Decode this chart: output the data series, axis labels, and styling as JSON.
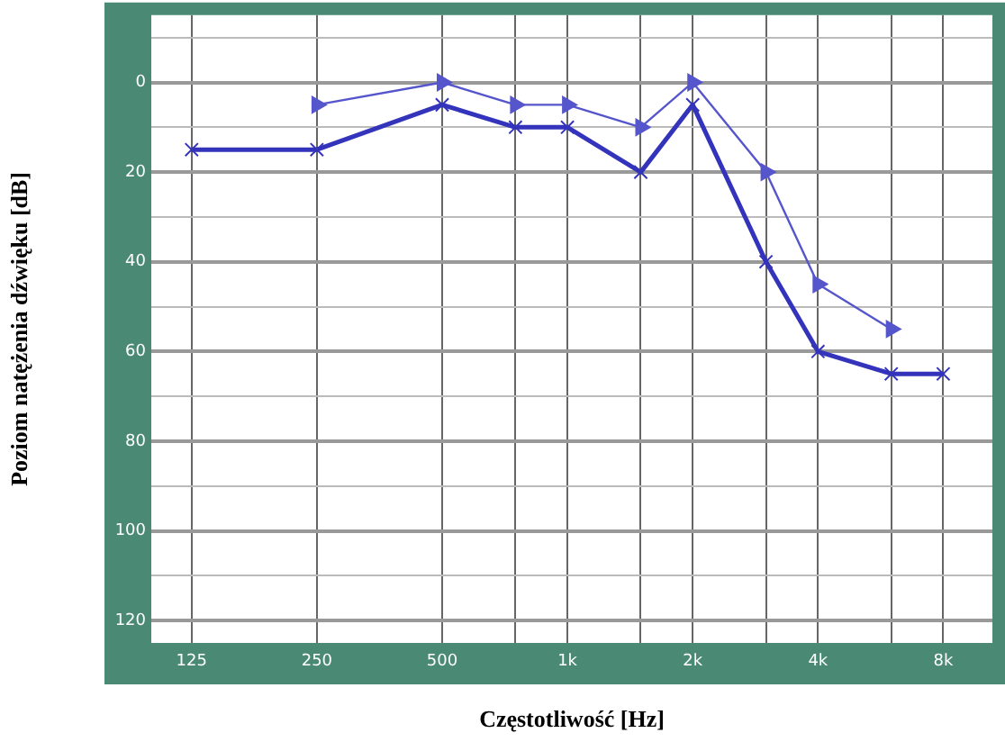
{
  "chart_data": {
    "type": "line",
    "xlabel": "Częstotliwość [Hz]",
    "ylabel": "Poziom natężenia dźwięku [dB]",
    "log": "x",
    "grid": true,
    "xlim": [
      100,
      10500
    ],
    "xticks": [
      125,
      250,
      500,
      {
        "value": 750,
        "label": null
      },
      {
        "value": 1000,
        "label": "1k"
      },
      {
        "value": 1500,
        "label": null
      },
      {
        "value": 2000,
        "label": "2k"
      },
      {
        "value": 3000,
        "label": null
      },
      {
        "value": 4000,
        "label": "4k"
      },
      {
        "value": 6000,
        "label": null
      },
      {
        "value": 8000,
        "label": "8k"
      }
    ],
    "ylim": [
      125,
      -15
    ],
    "yticks": [
      {
        "value": -10,
        "label": null
      },
      0,
      {
        "value": 10,
        "label": null
      },
      20,
      {
        "value": 30,
        "label": null
      },
      40,
      {
        "value": 50,
        "label": null
      },
      60,
      {
        "value": 70,
        "label": null
      },
      80,
      {
        "value": 90,
        "label": null
      },
      100,
      {
        "value": 110,
        "label": null
      },
      120
    ],
    "series": [
      {
        "color": "#3333bb",
        "marker": "cross",
        "x": [
          125,
          250,
          500,
          750,
          1000,
          1500,
          2000,
          3000,
          4000,
          6000,
          8000
        ],
        "values": [
          15,
          15,
          5,
          10,
          10,
          20,
          5,
          40,
          60,
          65,
          65
        ]
      },
      {
        "color": "#5555cc",
        "marker": "triangle",
        "x": [
          250,
          500,
          750,
          1000,
          1500,
          2000,
          3000,
          4000,
          6000
        ],
        "values": [
          5,
          0,
          5,
          5,
          10,
          0,
          20,
          45,
          55
        ]
      }
    ]
  }
}
